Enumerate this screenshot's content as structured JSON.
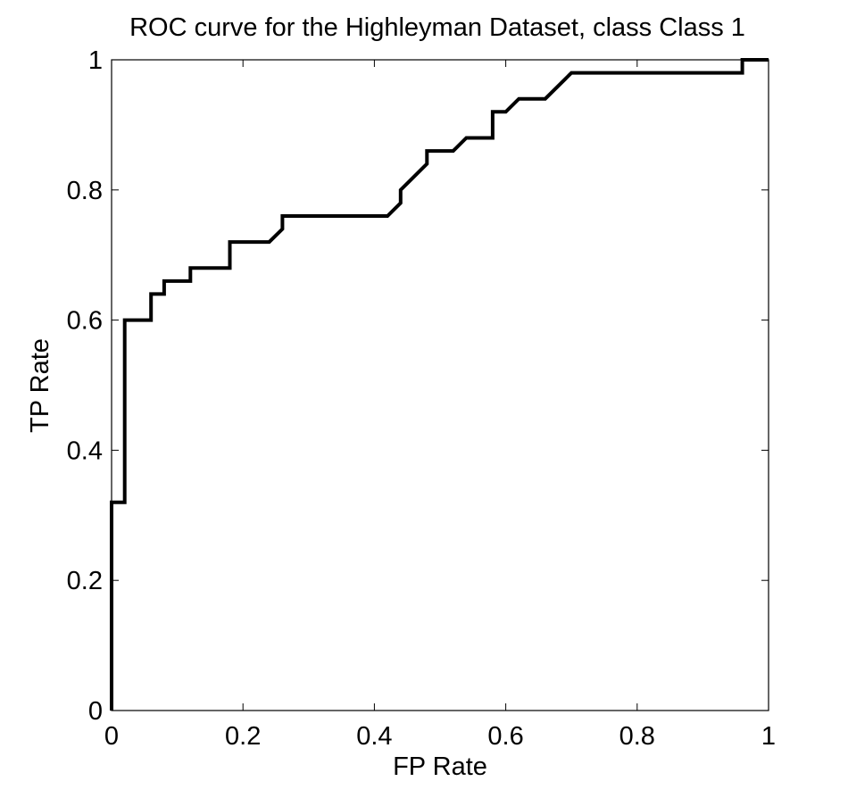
{
  "chart_data": {
    "type": "line",
    "title": "ROC curve for the Highleyman Dataset, class Class 1",
    "xlabel": "FP Rate",
    "ylabel": "TP Rate",
    "xlim": [
      0,
      1
    ],
    "ylim": [
      0,
      1
    ],
    "xticks": [
      0,
      0.2,
      0.4,
      0.6,
      0.8,
      1
    ],
    "xtick_labels": [
      "0",
      "0.2",
      "0.4",
      "0.6",
      "0.8",
      "1"
    ],
    "yticks": [
      0,
      0.2,
      0.4,
      0.6,
      0.8,
      1
    ],
    "ytick_labels": [
      "0",
      "0.2",
      "0.4",
      "0.6",
      "0.8",
      "1"
    ],
    "grid": false,
    "line_color": "#000000",
    "series": [
      {
        "x": [
          0,
          0,
          0.02,
          0.02,
          0.06,
          0.06,
          0.08,
          0.08,
          0.12,
          0.12,
          0.18,
          0.18,
          0.24,
          0.26,
          0.26,
          0.42,
          0.44,
          0.44,
          0.48,
          0.48,
          0.52,
          0.54,
          0.58,
          0.58,
          0.6,
          0.62,
          0.66,
          0.7,
          0.96,
          0.96,
          1.0
        ],
        "y": [
          0,
          0.32,
          0.32,
          0.6,
          0.6,
          0.64,
          0.64,
          0.66,
          0.66,
          0.68,
          0.68,
          0.72,
          0.72,
          0.74,
          0.76,
          0.76,
          0.78,
          0.8,
          0.84,
          0.86,
          0.86,
          0.88,
          0.88,
          0.92,
          0.92,
          0.94,
          0.94,
          0.98,
          0.98,
          1.0,
          1.0
        ]
      }
    ]
  }
}
